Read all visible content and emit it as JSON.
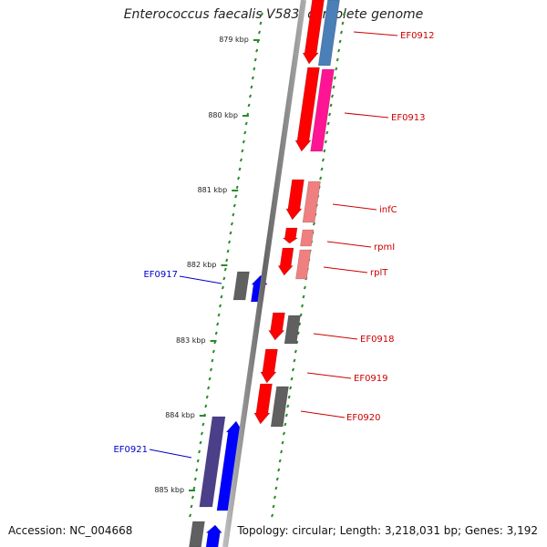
{
  "title": "Enterococcus faecalis V583, complete genome",
  "footer": {
    "accession": "Accession: NC_004668",
    "summary": "Topology: circular; Length: 3,218,031 bp; Genes: 3,192"
  },
  "ticks": [
    "879 kbp",
    "880 kbp",
    "881 kbp",
    "882 kbp",
    "883 kbp",
    "884 kbp",
    "885 kbp"
  ],
  "genes": [
    {
      "label": "EF0912",
      "color": "#cc0000",
      "strand": "+"
    },
    {
      "label": "EF0913",
      "color": "#cc0000",
      "strand": "+"
    },
    {
      "label": "infC",
      "color": "#cc0000",
      "strand": "+"
    },
    {
      "label": "rpmI",
      "color": "#cc0000",
      "strand": "+"
    },
    {
      "label": "rplT",
      "color": "#cc0000",
      "strand": "+"
    },
    {
      "label": "EF0917",
      "color": "#0000cc",
      "strand": "-"
    },
    {
      "label": "EF0918",
      "color": "#cc0000",
      "strand": "+"
    },
    {
      "label": "EF0919",
      "color": "#cc0000",
      "strand": "+"
    },
    {
      "label": "EF0920",
      "color": "#cc0000",
      "strand": "+"
    },
    {
      "label": "EF0921",
      "color": "#0000cc",
      "strand": "-"
    }
  ],
  "colors": {
    "axis": "#777777",
    "ticks": "#2a8a2a",
    "red": "#ff0000",
    "blue": "#0000ff",
    "pink": "#f08080",
    "magenta": "#ff1493",
    "steelblue": "#4a7fb8",
    "grey": "#606060",
    "slate": "#4b3f8a"
  }
}
